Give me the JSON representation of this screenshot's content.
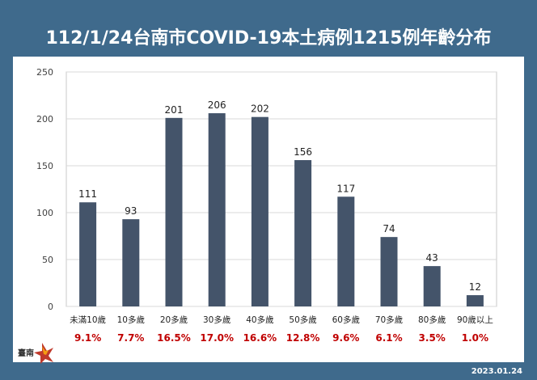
{
  "header": {
    "title": "112/1/24台南市COVID-19本土病例1215例年齡分布"
  },
  "footer": {
    "date": "2023.01.24"
  },
  "logo": {
    "text": "臺南"
  },
  "colors": {
    "background": "#3f6a8c",
    "bar": "#44546a",
    "percent": "#c00000",
    "grid": "#d9d9d9"
  },
  "chart_data": {
    "type": "bar",
    "title": "",
    "xlabel": "",
    "ylabel": "",
    "categories": [
      "未滿10歲",
      "10多歲",
      "20多歲",
      "30多歲",
      "40多歲",
      "50多歲",
      "60多歲",
      "70多歲",
      "80多歲",
      "90歲以上"
    ],
    "values": [
      111,
      93,
      201,
      206,
      202,
      156,
      117,
      74,
      43,
      12
    ],
    "percentages": [
      "9.1%",
      "7.7%",
      "16.5%",
      "17.0%",
      "16.6%",
      "12.8%",
      "9.6%",
      "6.1%",
      "3.5%",
      "1.0%"
    ],
    "ylim": [
      0,
      250
    ],
    "yticks": [
      0,
      50,
      100,
      150,
      200,
      250
    ],
    "grid": true,
    "legend": "none"
  }
}
